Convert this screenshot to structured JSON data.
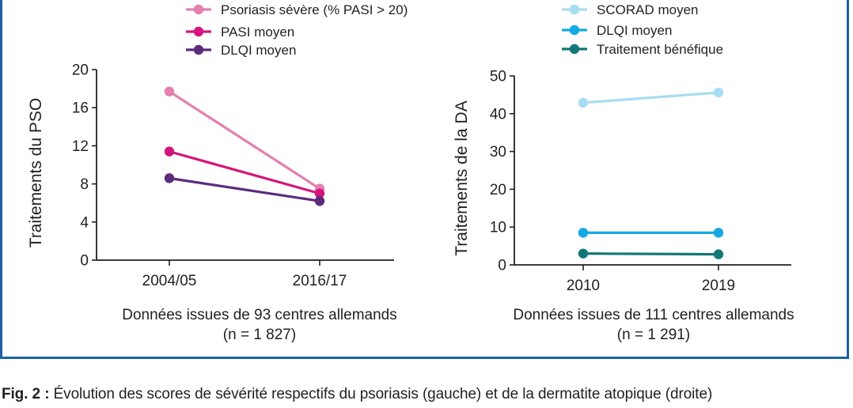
{
  "chart_data": [
    {
      "type": "line",
      "ylabel": "Traitements du PSO",
      "categories": [
        "2004/05",
        "2016/17"
      ],
      "ylim": [
        0,
        20
      ],
      "yticks": [
        0,
        4,
        8,
        12,
        16,
        20
      ],
      "grid": false,
      "legend_placement": "top",
      "series": [
        {
          "name": "Psoriasis sévère (% PASI > 20)",
          "values": [
            17.7,
            7.5
          ],
          "color": "#e47fb0"
        },
        {
          "name": "PASI moyen",
          "values": [
            11.4,
            7.0
          ],
          "color": "#d4157d"
        },
        {
          "name": "DLQI moyen",
          "values": [
            8.6,
            6.2
          ],
          "color": "#5c2b7c"
        }
      ],
      "source_line1": "Données issues de 93 centres allemands",
      "source_line2": "(n = 1 827)"
    },
    {
      "type": "line",
      "ylabel": "Traitements de la DA",
      "categories": [
        "2010",
        "2019"
      ],
      "ylim": [
        0,
        50
      ],
      "yticks": [
        0,
        10,
        20,
        30,
        40,
        50
      ],
      "grid": false,
      "legend_placement": "top",
      "series": [
        {
          "name": "SCORAD moyen",
          "values": [
            42.9,
            45.6
          ],
          "color": "#a8dcf2"
        },
        {
          "name": "DLQI moyen",
          "values": [
            8.5,
            8.5
          ],
          "color": "#14a9e1"
        },
        {
          "name": "Traitement bénéfique",
          "values": [
            3.0,
            2.8
          ],
          "color": "#137777"
        }
      ],
      "source_line1": "Données issues de 111 centres allemands",
      "source_line2": "(n = 1 291)"
    }
  ],
  "caption": {
    "label": "Fig. 2 :",
    "text": " Évolution des scores de sévérité respectifs du psoriasis (gauche) et de la dermatite atopique (droite)"
  },
  "colors": {
    "frame": "#1f5fa6",
    "axis": "#231f20"
  }
}
